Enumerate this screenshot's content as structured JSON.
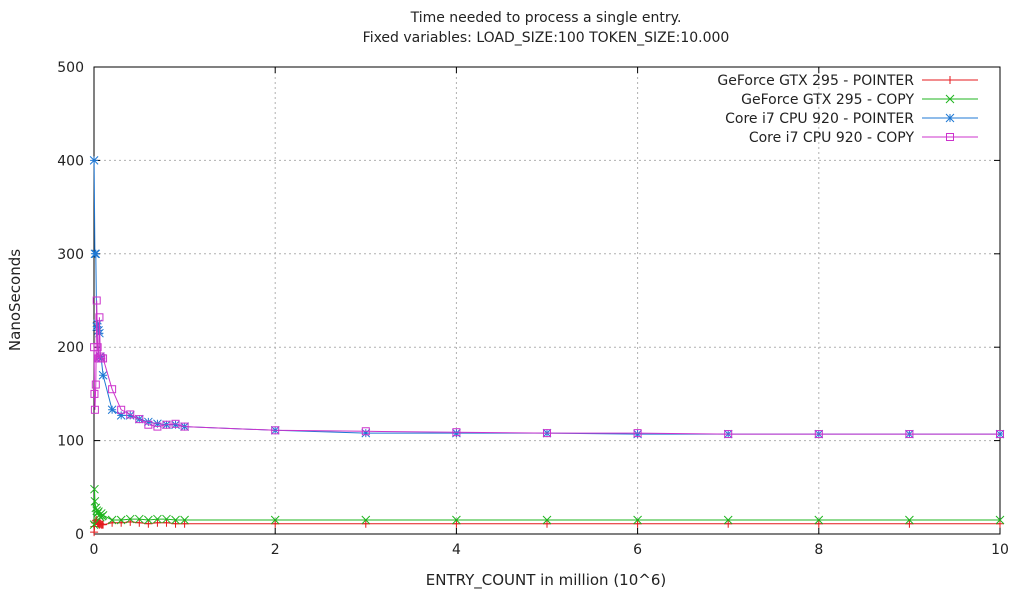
{
  "chart_data": {
    "type": "line",
    "title": "Time needed to process a single entry.",
    "subtitle": "Fixed variables: LOAD_SIZE:100 TOKEN_SIZE:10.000",
    "xlabel": "ENTRY_COUNT in million (10^6)",
    "ylabel": "NanoSeconds",
    "xlim": [
      0,
      10
    ],
    "ylim": [
      0,
      500
    ],
    "xticks": [
      0,
      2,
      4,
      6,
      8,
      10
    ],
    "yticks": [
      0,
      100,
      200,
      300,
      400,
      500
    ],
    "grid": true,
    "legend_position": "top-right",
    "series": [
      {
        "name": "GeForce GTX 295 - POINTER",
        "color": "#e41a1c",
        "marker": "plus",
        "x": [
          0.001,
          0.005,
          0.01,
          0.02,
          0.03,
          0.04,
          0.05,
          0.06,
          0.07,
          0.08,
          0.09,
          0.1,
          0.2,
          0.3,
          0.4,
          0.5,
          0.6,
          0.7,
          0.8,
          0.9,
          1,
          2,
          3,
          4,
          5,
          6,
          7,
          8,
          9,
          10
        ],
        "y": [
          2,
          8,
          12,
          14,
          15,
          12,
          11,
          10,
          11,
          10,
          10,
          10,
          12,
          12,
          13,
          12,
          11,
          12,
          12,
          11,
          11,
          11,
          11,
          11,
          11,
          11,
          11,
          11,
          11,
          11
        ]
      },
      {
        "name": "GeForce GTX 295 - COPY",
        "color": "#1fb51f",
        "marker": "x",
        "x": [
          0.001,
          0.005,
          0.01,
          0.02,
          0.03,
          0.04,
          0.05,
          0.06,
          0.07,
          0.08,
          0.09,
          0.1,
          0.2,
          0.3,
          0.4,
          0.5,
          0.6,
          0.7,
          0.8,
          0.9,
          1,
          2,
          3,
          4,
          5,
          6,
          7,
          8,
          9,
          10
        ],
        "y": [
          10,
          48,
          35,
          28,
          25,
          22,
          24,
          20,
          18,
          22,
          19,
          20,
          15,
          15,
          16,
          16,
          15,
          16,
          16,
          15,
          15,
          15,
          15,
          15,
          15,
          15,
          15,
          15,
          15,
          15
        ]
      },
      {
        "name": "Core i7 CPU 920 - POINTER",
        "color": "#1f78d4",
        "marker": "star",
        "x": [
          0.001,
          0.01,
          0.02,
          0.03,
          0.04,
          0.05,
          0.06,
          0.07,
          0.08,
          0.1,
          0.2,
          0.3,
          0.4,
          0.5,
          0.6,
          0.7,
          0.8,
          0.9,
          1,
          2,
          3,
          4,
          5,
          6,
          7,
          8,
          9,
          10
        ],
        "y": [
          400,
          300,
          300,
          222,
          225,
          218,
          215,
          190,
          188,
          170,
          133,
          127,
          127,
          123,
          120,
          118,
          117,
          117,
          115,
          111,
          108,
          108,
          108,
          107,
          107,
          107,
          107,
          107
        ]
      },
      {
        "name": "Core i7 CPU 920 - COPY",
        "color": "#cc33cc",
        "marker": "square",
        "x": [
          0.001,
          0.005,
          0.01,
          0.02,
          0.03,
          0.04,
          0.05,
          0.06,
          0.07,
          0.08,
          0.1,
          0.2,
          0.3,
          0.4,
          0.5,
          0.6,
          0.7,
          0.8,
          0.9,
          1,
          2,
          3,
          4,
          5,
          6,
          7,
          8,
          9,
          10
        ],
        "y": [
          200,
          150,
          133,
          160,
          250,
          200,
          188,
          232,
          190,
          188,
          188,
          155,
          133,
          128,
          123,
          117,
          115,
          117,
          118,
          115,
          111,
          110,
          109,
          108,
          108,
          107,
          107,
          107,
          107
        ]
      }
    ]
  }
}
